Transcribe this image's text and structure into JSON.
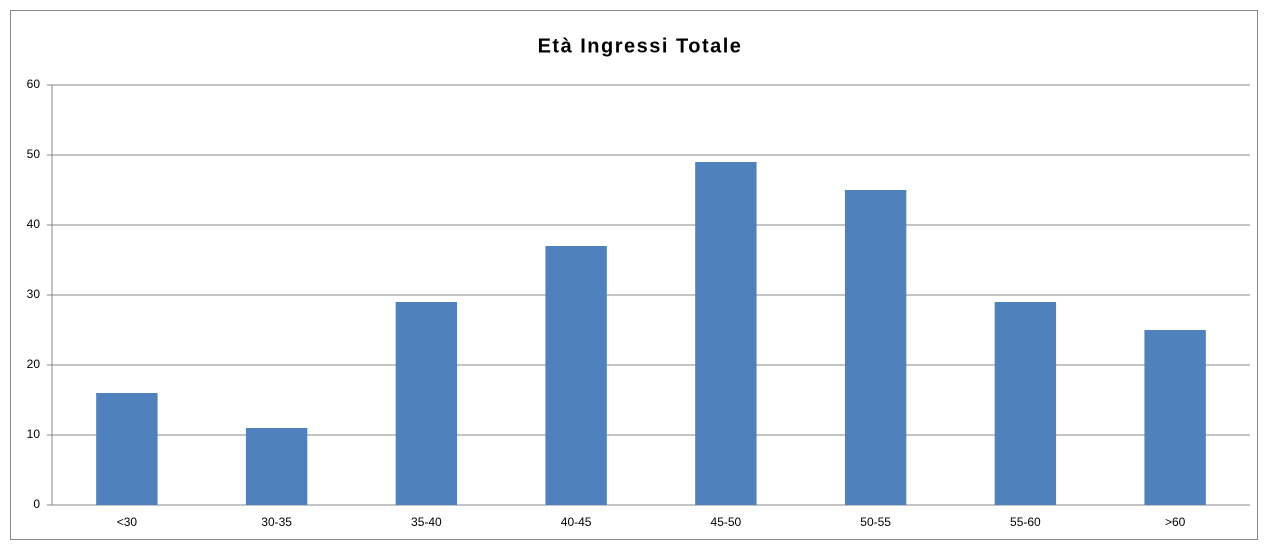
{
  "chart_data": {
    "type": "bar",
    "title": "Età Ingressi Totale",
    "categories": [
      "<30",
      "30-35",
      "35-40",
      "40-45",
      "45-50",
      "50-55",
      "55-60",
      ">60"
    ],
    "values": [
      16,
      11,
      29,
      37,
      49,
      45,
      29,
      25
    ],
    "color": "#4f81bd",
    "ylim": [
      0,
      60
    ],
    "yticks": [
      0,
      10,
      20,
      30,
      40,
      50,
      60
    ],
    "grid": true
  }
}
